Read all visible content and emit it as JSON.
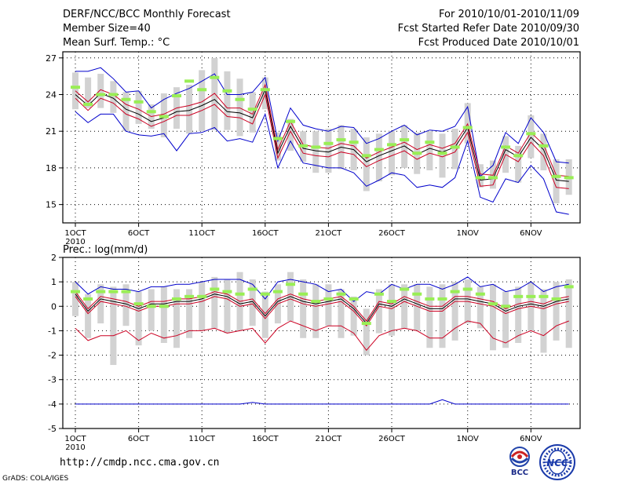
{
  "header": {
    "title": "DERF/NCC/BCC Monthly Forecast",
    "member_size": "Member Size=40",
    "variable": "Mean Surf. Temp.: °C",
    "period": "For 2010/10/01-2010/11/09",
    "fcst_started": "Fcst Started Refer Date 2010/09/30",
    "fcst_produced": "Fcst Produced Date 2010/10/01"
  },
  "footer": {
    "url": "http://cmdp.ncc.cma.gov.cn",
    "credit": "GrADS: COLA/IGES",
    "logo_bcc": "BCC",
    "logo_ncc": "NCC"
  },
  "colors": {
    "envelope": "#0000cc",
    "mean": "#000000",
    "spread": "#cc0022",
    "obs_bar": "#99ee55",
    "range_bar": "#d2d2d2",
    "grid": "#000000"
  },
  "chart_data": [
    {
      "type": "line",
      "title": "Mean Surf. Temp.: °C",
      "xlabel_year": "2010",
      "x_tick_labels": [
        "1OCT",
        "6OCT",
        "11OCT",
        "16OCT",
        "21OCT",
        "26OCT",
        "1NOV",
        "6NOV"
      ],
      "x_tick_days": [
        1,
        6,
        11,
        16,
        21,
        26,
        32,
        37
      ],
      "ylim": [
        13.5,
        27.5
      ],
      "y_ticks": [
        15,
        18,
        21,
        24,
        27
      ],
      "days": [
        1,
        2,
        3,
        4,
        5,
        6,
        7,
        8,
        9,
        10,
        11,
        12,
        13,
        14,
        15,
        16,
        17,
        18,
        19,
        20,
        21,
        22,
        23,
        24,
        25,
        26,
        27,
        28,
        29,
        30,
        31,
        32,
        33,
        34,
        35,
        36,
        37,
        38,
        39,
        40
      ],
      "series": [
        {
          "name": "upper",
          "values": [
            25.9,
            25.9,
            26.2,
            25.3,
            24.2,
            24.3,
            22.9,
            23.6,
            24.1,
            24.5,
            25.1,
            25.7,
            24.0,
            24.0,
            24.2,
            25.4,
            20.2,
            22.9,
            21.5,
            21.2,
            21.0,
            21.4,
            21.3,
            20.0,
            20.4,
            21.0,
            21.5,
            20.7,
            21.1,
            21.0,
            21.4,
            23.0,
            17.3,
            18.2,
            20.9,
            20.0,
            22.1,
            20.9,
            18.5,
            18.4
          ]
        },
        {
          "name": "spread_high",
          "values": [
            24.3,
            23.4,
            24.4,
            24.0,
            23.2,
            22.8,
            22.2,
            22.4,
            22.9,
            23.1,
            23.4,
            24.1,
            22.9,
            22.9,
            22.4,
            24.8,
            19.5,
            21.8,
            19.9,
            19.7,
            19.6,
            20.0,
            19.8,
            18.8,
            19.3,
            19.7,
            20.1,
            19.5,
            19.9,
            19.6,
            20.0,
            21.6,
            17.5,
            17.4,
            19.8,
            19.2,
            20.9,
            19.9,
            17.4,
            17.3
          ]
        },
        {
          "name": "mean",
          "values": [
            24.0,
            23.1,
            24.1,
            23.7,
            22.8,
            22.4,
            21.8,
            22.1,
            22.6,
            22.7,
            23.1,
            23.6,
            22.6,
            22.5,
            22.1,
            24.4,
            19.2,
            21.4,
            19.6,
            19.4,
            19.3,
            19.7,
            19.5,
            18.5,
            19.0,
            19.4,
            19.8,
            19.1,
            19.6,
            19.3,
            19.7,
            21.3,
            17.0,
            17.1,
            19.5,
            18.9,
            20.5,
            19.5,
            17.0,
            16.9
          ]
        },
        {
          "name": "spread_low",
          "values": [
            23.7,
            22.7,
            23.7,
            23.3,
            22.4,
            22.0,
            21.4,
            21.8,
            22.3,
            22.3,
            22.7,
            23.2,
            22.2,
            22.1,
            21.6,
            24.0,
            18.8,
            21.0,
            19.2,
            19.0,
            18.9,
            19.3,
            19.1,
            18.1,
            18.6,
            19.0,
            19.4,
            18.7,
            19.2,
            18.9,
            19.3,
            20.9,
            16.5,
            16.6,
            19.1,
            18.5,
            20.1,
            19.0,
            16.4,
            16.3
          ]
        },
        {
          "name": "lower",
          "values": [
            22.6,
            21.7,
            22.4,
            22.4,
            21.0,
            20.7,
            20.6,
            20.8,
            19.4,
            20.8,
            20.9,
            21.3,
            20.2,
            20.4,
            20.1,
            22.4,
            18.0,
            20.2,
            18.4,
            18.2,
            18.0,
            18.0,
            17.6,
            16.5,
            17.0,
            17.6,
            17.4,
            16.4,
            16.6,
            16.4,
            17.2,
            20.2,
            15.6,
            15.2,
            17.1,
            16.8,
            18.2,
            17.1,
            14.4,
            14.2
          ]
        }
      ],
      "obs": [
        24.6,
        23.2,
        24.0,
        24.0,
        23.6,
        23.4,
        22.6,
        22.2,
        23.9,
        25.1,
        24.4,
        25.4,
        24.3,
        23.6,
        22.8,
        24.4,
        20.4,
        21.8,
        19.8,
        19.7,
        20.0,
        20.3,
        20.1,
        19.0,
        19.5,
        19.9,
        20.3,
        19.2,
        20.1,
        19.2,
        19.7,
        21.3,
        17.2,
        17.2,
        19.7,
        19.0,
        20.8,
        19.8,
        17.3,
        17.2
      ],
      "range_top": [
        25.8,
        25.4,
        25.7,
        25.1,
        24.2,
        24.3,
        23.2,
        24.1,
        24.6,
        24.8,
        26.0,
        27.0,
        25.9,
        25.3,
        24.2,
        25.4,
        20.9,
        22.0,
        21.0,
        21.0,
        21.2,
        21.5,
        21.2,
        20.5,
        20.8,
        21.0,
        21.5,
        20.9,
        21.0,
        20.8,
        21.2,
        23.3,
        18.3,
        18.6,
        20.6,
        19.8,
        22.3,
        20.8,
        18.7,
        18.7
      ],
      "range_bot": [
        22.8,
        22.9,
        22.9,
        22.5,
        21.0,
        21.6,
        21.2,
        20.5,
        21.2,
        20.8,
        21.0,
        21.1,
        21.1,
        20.6,
        20.9,
        22.8,
        18.6,
        19.4,
        18.5,
        17.6,
        17.6,
        17.9,
        17.8,
        16.1,
        16.9,
        17.4,
        18.0,
        17.5,
        17.8,
        17.2,
        17.9,
        20.0,
        16.4,
        16.3,
        17.6,
        16.8,
        18.8,
        17.8,
        15.1,
        15.8
      ]
    },
    {
      "type": "line",
      "title": "Prec.: log(mm/d)",
      "xlabel_year": "2010",
      "x_tick_labels": [
        "1OCT",
        "6OCT",
        "11OCT",
        "16OCT",
        "21OCT",
        "26OCT",
        "1NOV",
        "6NOV"
      ],
      "x_tick_days": [
        1,
        6,
        11,
        16,
        21,
        26,
        32,
        37
      ],
      "ylim": [
        -5,
        2
      ],
      "y_ticks": [
        -5,
        -4,
        -3,
        -2,
        -1,
        0,
        1,
        2
      ],
      "days": [
        1,
        2,
        3,
        4,
        5,
        6,
        7,
        8,
        9,
        10,
        11,
        12,
        13,
        14,
        15,
        16,
        17,
        18,
        19,
        20,
        21,
        22,
        23,
        24,
        25,
        26,
        27,
        28,
        29,
        30,
        31,
        32,
        33,
        34,
        35,
        36,
        37,
        38,
        39,
        40
      ],
      "series": [
        {
          "name": "upper",
          "values": [
            1.0,
            0.5,
            0.8,
            0.7,
            0.7,
            0.6,
            0.8,
            0.8,
            0.9,
            0.9,
            1.0,
            1.1,
            1.1,
            1.1,
            0.9,
            0.3,
            1.0,
            1.1,
            1.0,
            0.9,
            0.6,
            0.7,
            0.2,
            0.6,
            0.5,
            0.9,
            0.7,
            0.9,
            0.9,
            0.7,
            0.9,
            1.2,
            0.8,
            0.9,
            0.6,
            0.7,
            1.0,
            0.6,
            0.8,
            0.9
          ]
        },
        {
          "name": "spread_high",
          "values": [
            0.6,
            -0.1,
            0.4,
            0.3,
            0.2,
            0.0,
            0.2,
            0.2,
            0.3,
            0.3,
            0.4,
            0.6,
            0.5,
            0.2,
            0.3,
            -0.3,
            0.3,
            0.5,
            0.3,
            0.2,
            0.3,
            0.4,
            0.0,
            -0.6,
            0.2,
            0.1,
            0.4,
            0.2,
            0.0,
            0.0,
            0.4,
            0.4,
            0.3,
            0.2,
            -0.1,
            0.1,
            0.2,
            0.1,
            0.3,
            0.4
          ]
        },
        {
          "name": "mean",
          "values": [
            0.5,
            -0.2,
            0.3,
            0.2,
            0.1,
            -0.1,
            0.1,
            0.1,
            0.2,
            0.2,
            0.3,
            0.5,
            0.4,
            0.1,
            0.2,
            -0.4,
            0.2,
            0.4,
            0.2,
            0.1,
            0.2,
            0.3,
            -0.1,
            -0.7,
            0.1,
            0.0,
            0.3,
            0.1,
            -0.1,
            -0.1,
            0.3,
            0.3,
            0.2,
            0.1,
            -0.2,
            0.0,
            0.1,
            0.0,
            0.2,
            0.3
          ]
        },
        {
          "name": "spread_low",
          "values": [
            0.4,
            -0.3,
            0.2,
            0.1,
            0.0,
            -0.2,
            0.0,
            0.0,
            0.1,
            0.1,
            0.2,
            0.4,
            0.3,
            0.0,
            0.1,
            -0.5,
            0.1,
            0.3,
            0.1,
            0.0,
            0.1,
            0.2,
            -0.2,
            -0.8,
            0.0,
            -0.1,
            0.2,
            0.0,
            -0.2,
            -0.2,
            0.2,
            0.2,
            0.1,
            0.0,
            -0.3,
            -0.1,
            0.0,
            -0.1,
            0.1,
            0.2
          ]
        },
        {
          "name": "lower_red",
          "values": [
            -0.9,
            -1.4,
            -1.2,
            -1.2,
            -1.0,
            -1.4,
            -1.1,
            -1.3,
            -1.2,
            -1.0,
            -1.0,
            -0.9,
            -1.1,
            -1.0,
            -0.9,
            -1.5,
            -0.9,
            -0.6,
            -0.8,
            -1.0,
            -0.8,
            -0.8,
            -1.1,
            -1.8,
            -1.2,
            -1.0,
            -0.9,
            -1.0,
            -1.3,
            -1.3,
            -0.9,
            -0.6,
            -0.7,
            -1.3,
            -1.5,
            -1.2,
            -1.0,
            -1.2,
            -0.8,
            -0.6
          ]
        },
        {
          "name": "lower_blue",
          "values": [
            -4.0,
            -4.0,
            -4.0,
            -4.0,
            -4.0,
            -4.0,
            -4.0,
            -4.0,
            -4.0,
            -4.0,
            -4.0,
            -4.0,
            -4.0,
            -4.0,
            -3.93,
            -4.0,
            -4.0,
            -4.0,
            -4.0,
            -4.0,
            -4.0,
            -4.0,
            -4.0,
            -4.0,
            -4.0,
            -4.0,
            -4.0,
            -4.0,
            -4.0,
            -3.82,
            -4.0,
            -4.0,
            -4.0,
            -4.0,
            -4.0,
            -4.0,
            -4.0,
            -4.0,
            -4.0,
            -4.0
          ]
        }
      ],
      "obs": [
        0.6,
        0.3,
        0.6,
        0.6,
        0.6,
        0.1,
        0.0,
        0.0,
        0.3,
        0.4,
        0.4,
        0.7,
        0.6,
        0.5,
        0.7,
        0.5,
        0.6,
        0.9,
        0.5,
        0.2,
        0.3,
        0.5,
        0.3,
        -0.7,
        0.5,
        0.2,
        0.7,
        0.5,
        0.3,
        0.3,
        0.6,
        0.7,
        0.5,
        0.1,
        0.0,
        0.4,
        0.4,
        0.4,
        0.3,
        0.8
      ],
      "range_top": [
        1.0,
        0.5,
        0.9,
        0.8,
        0.9,
        0.6,
        0.7,
        0.8,
        0.7,
        0.7,
        1.0,
        1.2,
        1.1,
        1.4,
        1.1,
        0.6,
        0.9,
        1.4,
        1.1,
        0.9,
        0.9,
        0.7,
        0.4,
        -0.1,
        0.7,
        0.9,
        0.9,
        0.9,
        0.8,
        0.9,
        1.0,
        1.1,
        0.8,
        0.9,
        0.6,
        0.8,
        1.0,
        0.7,
        1.0,
        1.1
      ],
      "range_bot": [
        -0.4,
        -1.3,
        -0.7,
        -2.4,
        -0.8,
        -1.6,
        -1.0,
        -1.5,
        -1.7,
        -1.3,
        -1.0,
        -0.9,
        -1.1,
        -1.0,
        -0.8,
        -1.3,
        -0.7,
        -0.6,
        -1.3,
        -1.3,
        -0.8,
        -1.3,
        -1.2,
        -2.0,
        -1.1,
        -1.2,
        -0.9,
        -1.0,
        -1.7,
        -1.7,
        -1.4,
        -0.7,
        -0.9,
        -1.8,
        -1.7,
        -1.5,
        -1.0,
        -1.9,
        -1.4,
        -1.7
      ]
    }
  ]
}
